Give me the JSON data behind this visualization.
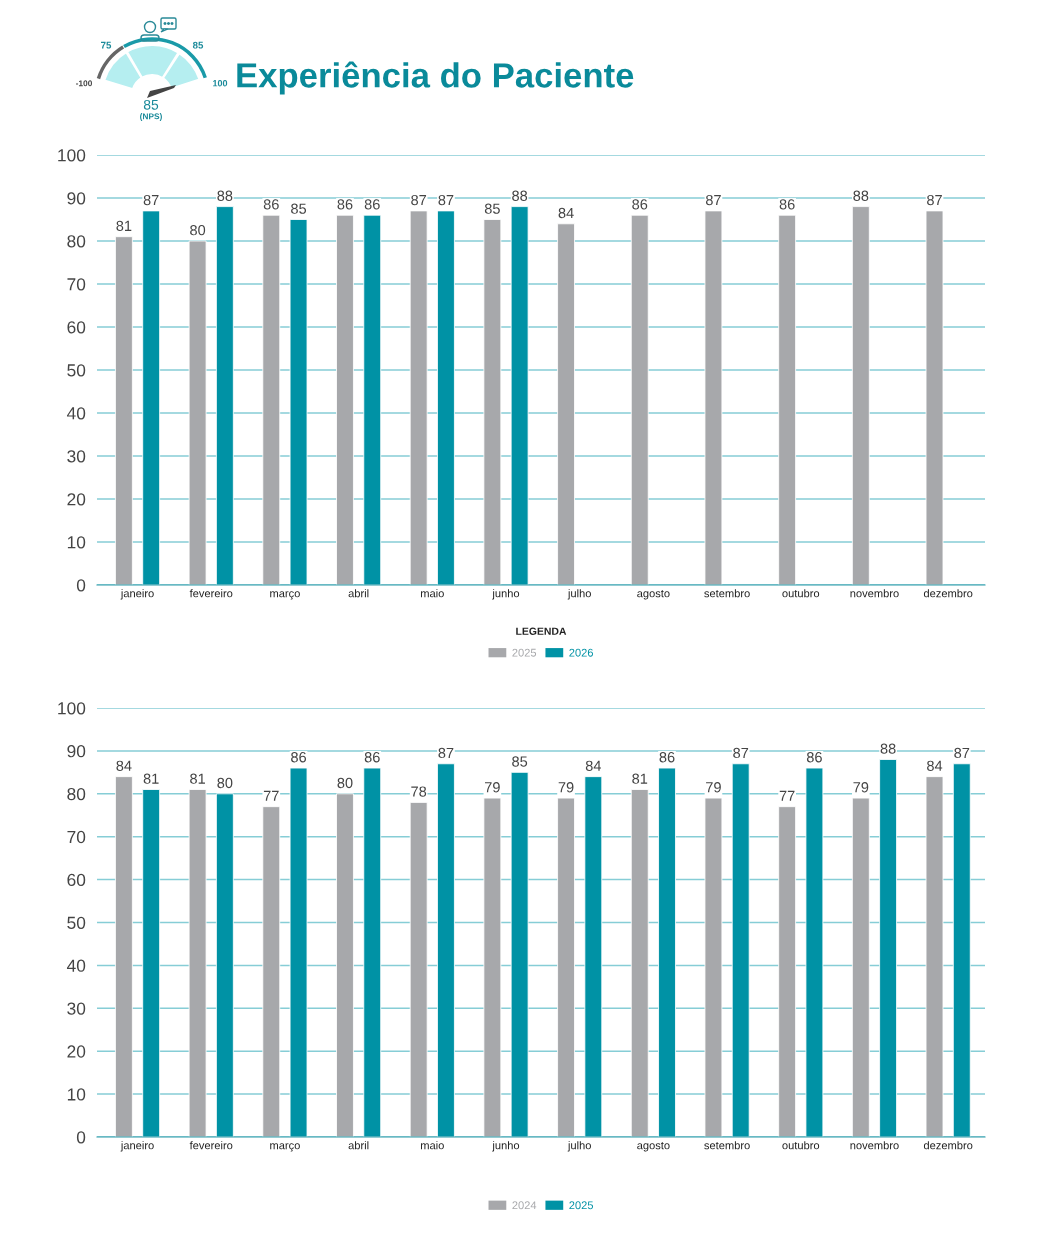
{
  "chart_data": [
    {
      "type": "bar",
      "title": "Experiência do Paciente",
      "annotations": [
        "-100",
        "75",
        "85",
        "100",
        "85",
        "(NPS)"
      ],
      "categories": [
        "janeiro",
        "fevereiro",
        "março",
        "abril",
        "maio",
        "junho",
        "julho",
        "agosto",
        "setembro",
        "outubro",
        "novembro",
        "dezembro"
      ],
      "series": [
        {
          "name": "2025",
          "color": "#a7a8ab",
          "values": [
            81,
            80,
            86,
            86,
            87,
            85,
            84,
            86,
            87,
            86,
            88,
            87
          ]
        },
        {
          "name": "2026",
          "color": "#0092a5",
          "values": [
            87,
            88,
            85,
            86,
            87,
            88,
            null,
            null,
            null,
            null,
            null,
            null
          ]
        }
      ],
      "ylim": [
        0,
        100
      ],
      "yticks": [
        0,
        10,
        20,
        30,
        40,
        50,
        60,
        70,
        80,
        90,
        100
      ],
      "grid": "y",
      "legend": "bottom",
      "legend_title": "LEGENDA",
      "data_labels": true
    },
    {
      "type": "bar",
      "categories": [
        "janeiro",
        "fevereiro",
        "março",
        "abril",
        "maio",
        "junho",
        "julho",
        "agosto",
        "setembro",
        "outubro",
        "novembro",
        "dezembro"
      ],
      "series": [
        {
          "name": "2024",
          "color": "#a7a8ab",
          "values": [
            84,
            81,
            77,
            80,
            78,
            79,
            79,
            81,
            79,
            77,
            79,
            84
          ]
        },
        {
          "name": "2025",
          "color": "#0092a5",
          "values": [
            81,
            80,
            86,
            86,
            87,
            85,
            84,
            86,
            87,
            86,
            88,
            87
          ]
        }
      ],
      "ylim": [
        0,
        100
      ],
      "yticks": [
        0,
        10,
        20,
        30,
        40,
        50,
        60,
        70,
        80,
        90,
        100
      ],
      "grid": "y",
      "legend": "bottom",
      "data_labels": true
    }
  ]
}
